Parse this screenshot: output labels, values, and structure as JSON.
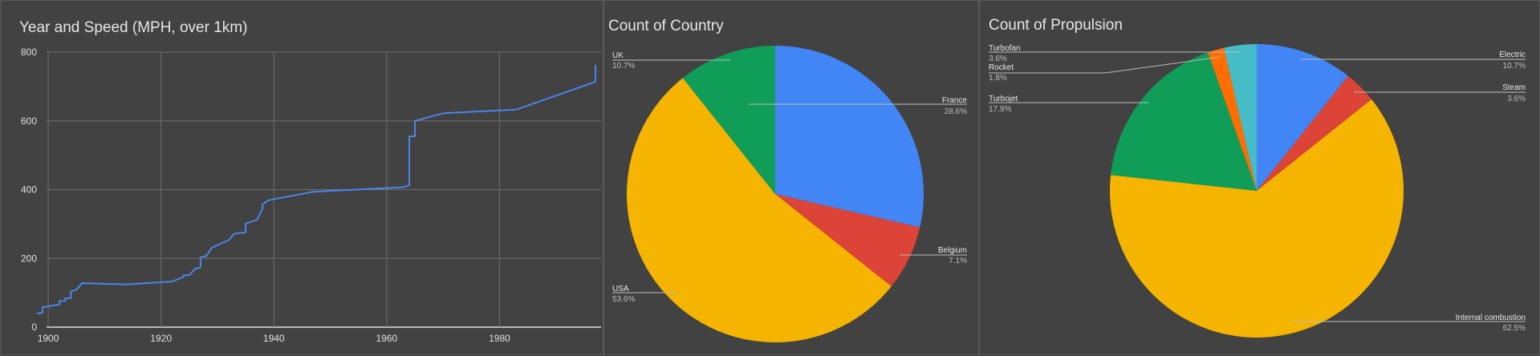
{
  "chart_data": [
    {
      "type": "line",
      "title": "Year  and Speed (MPH, over 1km)",
      "xlim": [
        1898,
        1998
      ],
      "ylim": [
        0,
        800
      ],
      "xticks": [
        1900,
        1920,
        1940,
        1960,
        1980
      ],
      "yticks": [
        0,
        200,
        400,
        600,
        800
      ],
      "grid": true,
      "color": "#4a86e8",
      "series": [
        {
          "x": [
            1898,
            1899,
            1899,
            1902,
            1902,
            1903,
            1903,
            1904,
            1904,
            1905,
            1906,
            1914,
            1922,
            1924,
            1924,
            1925,
            1926,
            1927,
            1927,
            1928,
            1928,
            1929,
            1931,
            1932,
            1933,
            1935,
            1935,
            1937,
            1938,
            1938,
            1939,
            1947,
            1963,
            1964,
            1964,
            1964,
            1964,
            1965,
            1965,
            1970,
            1983,
            1997,
            1997
          ],
          "y": [
            39,
            43,
            58,
            66,
            76,
            76,
            84,
            84,
            104,
            109,
            128,
            124,
            133,
            146,
            151,
            151,
            169,
            174,
            203,
            207,
            206,
            231,
            246,
            253,
            272,
            276,
            301,
            312,
            345,
            357,
            369,
            394,
            407,
            413,
            413,
            536,
            555,
            555,
            600,
            622,
            633,
            714,
            763
          ]
        }
      ]
    },
    {
      "type": "pie",
      "title": "Count of Country",
      "slices": [
        {
          "label": "France",
          "percent": 28.6,
          "pct_text": "28.6%",
          "color": "#4285f4"
        },
        {
          "label": "Belgium",
          "percent": 7.1,
          "pct_text": "7.1%",
          "color": "#db4437"
        },
        {
          "label": "USA",
          "percent": 53.6,
          "pct_text": "53.6%",
          "color": "#f4b400"
        },
        {
          "label": "UK",
          "percent": 10.7,
          "pct_text": "10.7%",
          "color": "#0f9d58"
        }
      ]
    },
    {
      "type": "pie",
      "title": "Count of Propulsion",
      "slices": [
        {
          "label": "Electric",
          "percent": 10.7,
          "pct_text": "10.7%",
          "color": "#4285f4"
        },
        {
          "label": "Steam",
          "percent": 3.6,
          "pct_text": "3.6%",
          "color": "#db4437"
        },
        {
          "label": "Internal combustion",
          "percent": 62.5,
          "pct_text": "62.5%",
          "color": "#f4b400"
        },
        {
          "label": "Turbojet",
          "percent": 17.9,
          "pct_text": "17.9%",
          "color": "#0f9d58"
        },
        {
          "label": "Rocket",
          "percent": 1.8,
          "pct_text": "1.8%",
          "color": "#ff6d00"
        },
        {
          "label": "Turbofan",
          "percent": 3.6,
          "pct_text": "3.6%",
          "color": "#46bdc6"
        }
      ]
    }
  ]
}
